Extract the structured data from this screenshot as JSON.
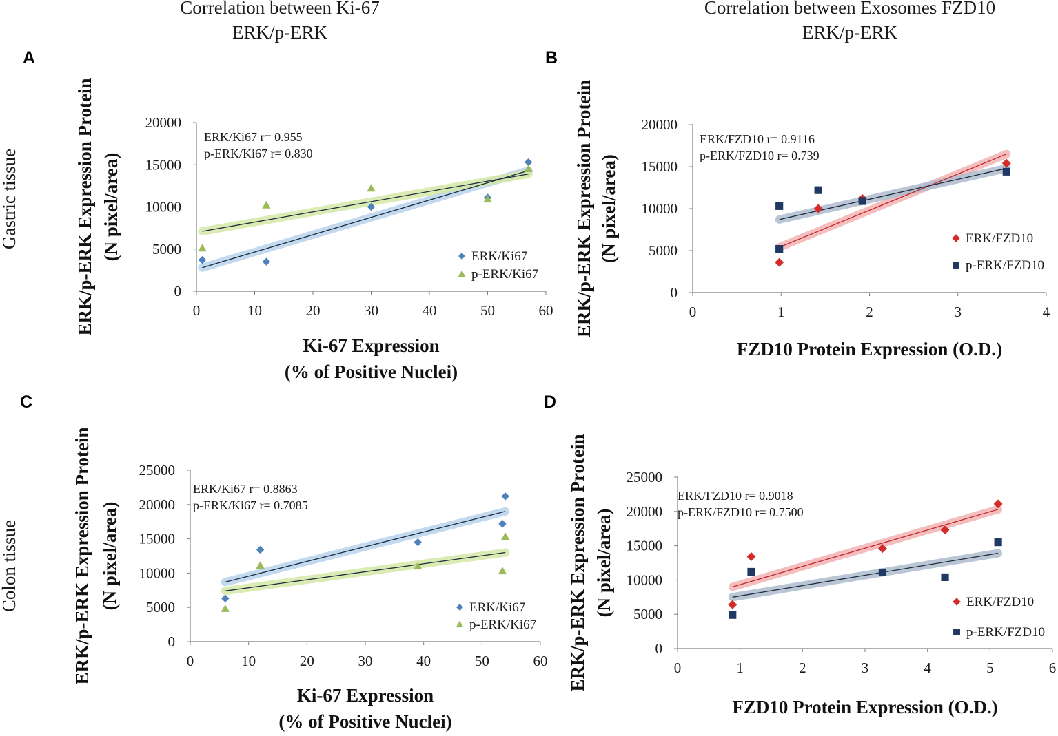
{
  "headings": {
    "left_line1": "Correlation between  Ki-67",
    "left_line2": "ERK/p-ERK",
    "right_line1": "Correlation between Exosomes FZD10",
    "right_line2": "ERK/p-ERK"
  },
  "row_labels": {
    "top": "Gastric tissue",
    "bottom": "Colon tissue"
  },
  "colors": {
    "blue_marker": "#4f81bd",
    "green_marker": "#9bbb59",
    "red_marker": "#d42b2b",
    "navy_marker": "#1f3864",
    "blue_band": "#b8d3ee",
    "green_band": "#d4e8a6",
    "red_band": "#f3b3b3",
    "navy_band": "#aebdd0",
    "axis": "#808080",
    "text": "#1a1a1a"
  },
  "chart_data": [
    {
      "id": "A",
      "panel_label": "A",
      "type": "scatter",
      "ylabel_line1": "ERK/p-ERK Expression Protein",
      "ylabel_line2": "(N pixel/area)",
      "xlabel_line1": "Ki-67 Expression",
      "xlabel_line2": "(% of Positive Nuclei)",
      "xlim": [
        0,
        60
      ],
      "ylim": [
        0,
        20000
      ],
      "xticks": [
        0,
        10,
        20,
        30,
        40,
        50,
        60
      ],
      "yticks": [
        0,
        5000,
        10000,
        15000,
        20000
      ],
      "annotation_line1": "ERK/Ki67 r=  0.955",
      "annotation_line2": "p-ERK/Ki67 r= 0.830",
      "legend_position": "bottom-right",
      "series": [
        {
          "name": "ERK/Ki67",
          "marker": "diamond",
          "color": "#4f81bd",
          "band": "#b8d3ee",
          "x": [
            1,
            12,
            30,
            50,
            57
          ],
          "y": [
            3700,
            3500,
            10000,
            11100,
            15300
          ],
          "trend": [
            [
              1,
              2800
            ],
            [
              57,
              14300
            ]
          ]
        },
        {
          "name": "p-ERK/Ki67",
          "marker": "triangle",
          "color": "#9bbb59",
          "band": "#d4e8a6",
          "x": [
            1,
            12,
            30,
            50,
            57
          ],
          "y": [
            5100,
            10200,
            12200,
            10900,
            14500
          ],
          "trend": [
            [
              1,
              7100
            ],
            [
              57,
              13900
            ]
          ]
        }
      ]
    },
    {
      "id": "B",
      "panel_label": "B",
      "type": "scatter",
      "ylabel_line1": "ERK/p-ERK Expression Protein",
      "ylabel_line2": "(N pixel/area)",
      "xlabel_line1": "FZD10 Protein Expression (O.D.)",
      "xlabel_line2": "",
      "xlim": [
        0,
        4
      ],
      "ylim": [
        0,
        20000
      ],
      "xticks": [
        0,
        1,
        2,
        3,
        4
      ],
      "yticks": [
        0,
        5000,
        10000,
        15000,
        20000
      ],
      "annotation_line1": "ERK/FZD10 r=  0.9116",
      "annotation_line2": "p-ERK/FZD10 r= 0.739",
      "legend_position": "bottom-right",
      "series": [
        {
          "name": "ERK/FZD10",
          "marker": "diamond",
          "color": "#d42b2b",
          "band": "#f3b3b3",
          "x": [
            0.98,
            1.42,
            1.92,
            3.55
          ],
          "y": [
            3600,
            10000,
            11200,
            15400
          ],
          "trend": [
            [
              0.98,
              5400
            ],
            [
              3.55,
              16500
            ]
          ]
        },
        {
          "name": "p-ERK/FZD10",
          "marker": "square",
          "color": "#1f3864",
          "band": "#aebdd0",
          "x": [
            0.98,
            0.98,
            1.42,
            1.92,
            3.55
          ],
          "y": [
            10300,
            5200,
            12200,
            10900,
            14400
          ],
          "trend": [
            [
              0.98,
              8700
            ],
            [
              3.55,
              14800
            ]
          ]
        }
      ]
    },
    {
      "id": "C",
      "panel_label": "C",
      "type": "scatter",
      "ylabel_line1": "ERK/p-ERK Expression Protein",
      "ylabel_line2": "(N pixel/area)",
      "xlabel_line1": "Ki-67 Expression",
      "xlabel_line2": "(% of Positive Nuclei)",
      "xlim": [
        0,
        60
      ],
      "ylim": [
        0,
        25000
      ],
      "xticks": [
        0,
        10,
        20,
        30,
        40,
        50,
        60
      ],
      "yticks": [
        0,
        5000,
        10000,
        15000,
        20000,
        25000
      ],
      "annotation_line1": "ERK/Ki67 r=  0.8863",
      "annotation_line2": "p-ERK/Ki67 r= 0.7085",
      "legend_position": "bottom-right",
      "series": [
        {
          "name": "ERK/Ki67",
          "marker": "diamond",
          "color": "#4f81bd",
          "band": "#b8d3ee",
          "x": [
            6,
            12,
            39,
            53.5,
            54
          ],
          "y": [
            6300,
            13400,
            14500,
            17200,
            21200
          ],
          "trend": [
            [
              6,
              8700
            ],
            [
              54,
              19000
            ]
          ]
        },
        {
          "name": "p-ERK/Ki67",
          "marker": "triangle",
          "color": "#9bbb59",
          "band": "#d4e8a6",
          "x": [
            6,
            12,
            39,
            53.5,
            54
          ],
          "y": [
            4800,
            11100,
            11000,
            10300,
            15300
          ],
          "trend": [
            [
              6,
              7400
            ],
            [
              54,
              13000
            ]
          ]
        }
      ]
    },
    {
      "id": "D",
      "panel_label": "D",
      "type": "scatter",
      "ylabel_line1": "ERK/p-ERK Expression Protein",
      "ylabel_line2": "(N pixel/area)",
      "xlabel_line1": "FZD10 Protein Expression (O.D.)",
      "xlabel_line2": "",
      "xlim": [
        0,
        6
      ],
      "ylim": [
        0,
        25000
      ],
      "xticks": [
        0,
        1,
        2,
        3,
        4,
        5,
        6
      ],
      "yticks": [
        0,
        5000,
        10000,
        15000,
        20000,
        25000
      ],
      "annotation_line1": "ERK/FZD10 r=  0.9018",
      "annotation_line2": "p-ERK/FZD10 r= 0.7500",
      "legend_position": "bottom-right",
      "series": [
        {
          "name": "ERK/FZD10",
          "marker": "diamond",
          "color": "#d42b2b",
          "band": "#f3b3b3",
          "x": [
            0.88,
            1.18,
            3.28,
            4.28,
            5.13
          ],
          "y": [
            6400,
            13400,
            14600,
            17300,
            21100
          ],
          "trend": [
            [
              0.88,
              9000
            ],
            [
              5.13,
              20300
            ]
          ]
        },
        {
          "name": "p-ERK/FZD10",
          "marker": "square",
          "color": "#1f3864",
          "band": "#aebdd0",
          "x": [
            0.88,
            1.18,
            3.28,
            4.28,
            5.13
          ],
          "y": [
            4900,
            11200,
            11100,
            10400,
            15500
          ],
          "trend": [
            [
              0.88,
              7500
            ],
            [
              5.13,
              13900
            ]
          ]
        }
      ]
    }
  ]
}
